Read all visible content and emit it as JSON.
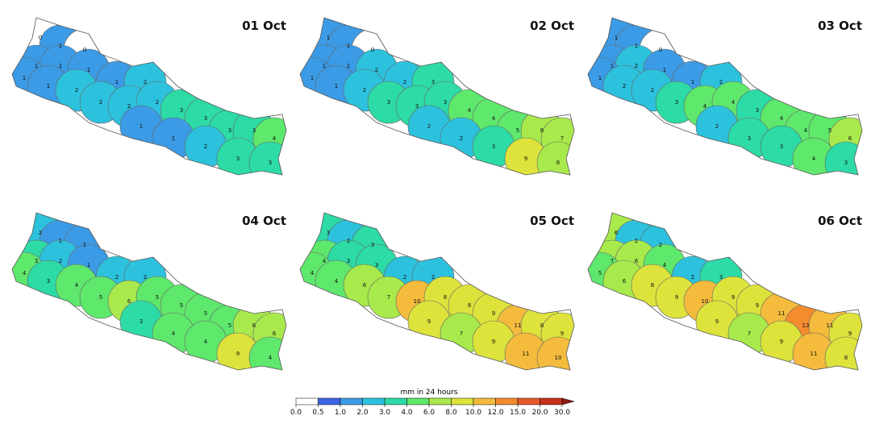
{
  "panels": [
    {
      "title": "01 Oct",
      "values": [
        0,
        1,
        0,
        1,
        1,
        1,
        1,
        2,
        1,
        1,
        2,
        2,
        2,
        2,
        3,
        3,
        3,
        3,
        4,
        1,
        1,
        2,
        3,
        3
      ]
    },
    {
      "title": "02 Oct",
      "values": [
        1,
        1,
        0,
        1,
        1,
        2,
        2,
        3,
        1,
        1,
        2,
        3,
        3,
        3,
        4,
        4,
        5,
        6,
        7,
        2,
        2,
        3,
        9,
        6
      ]
    },
    {
      "title": "03 Oct",
      "values": [
        1,
        1,
        0,
        1,
        2,
        1,
        1,
        2,
        1,
        2,
        2,
        3,
        4,
        4,
        3,
        4,
        4,
        5,
        6,
        2,
        3,
        3,
        4,
        3
      ]
    },
    {
      "title": "04 Oct",
      "values": [
        2,
        1,
        1,
        3,
        2,
        1,
        2,
        2,
        4,
        3,
        4,
        5,
        6,
        5,
        5,
        5,
        5,
        6,
        6,
        3,
        4,
        4,
        9,
        4
      ]
    },
    {
      "title": "05 Oct",
      "values": [
        3,
        2,
        3,
        4,
        3,
        3,
        2,
        2,
        4,
        4,
        6,
        7,
        10,
        8,
        8,
        9,
        11,
        8,
        9,
        9,
        7,
        9,
        11,
        10
      ]
    },
    {
      "title": "06 Oct",
      "values": [
        6,
        2,
        2,
        7,
        6,
        4,
        2,
        3,
        5,
        6,
        8,
        9,
        10,
        9,
        9,
        11,
        13,
        11,
        9,
        9,
        7,
        9,
        11,
        8
      ]
    }
  ],
  "colorbar": {
    "label": "mm in 24 hours",
    "ticks": [
      {
        "value": 0,
        "label": "0.0"
      },
      {
        "value": 0.5,
        "label": "0.5"
      },
      {
        "value": 1,
        "label": "1.0"
      },
      {
        "value": 2,
        "label": "2.0"
      },
      {
        "value": 3,
        "label": "3.0"
      },
      {
        "value": 4,
        "label": "4.0"
      },
      {
        "value": 6,
        "label": "6.0"
      },
      {
        "value": 8,
        "label": "8.0"
      },
      {
        "value": 10,
        "label": "10.0"
      },
      {
        "value": 12,
        "label": "12.0"
      },
      {
        "value": 15,
        "label": "15.0"
      },
      {
        "value": 20,
        "label": "20.0"
      },
      {
        "value": 30,
        "label": "30.0"
      }
    ],
    "colors": [
      "#ffffff",
      "#3d63e6",
      "#3b9be6",
      "#2cc2dd",
      "#2ddba6",
      "#5ee86c",
      "#a8ea4b",
      "#dde33b",
      "#f4bb3c",
      "#f48c2e",
      "#e6592a",
      "#c6311c",
      "#8c1a0f"
    ]
  }
}
